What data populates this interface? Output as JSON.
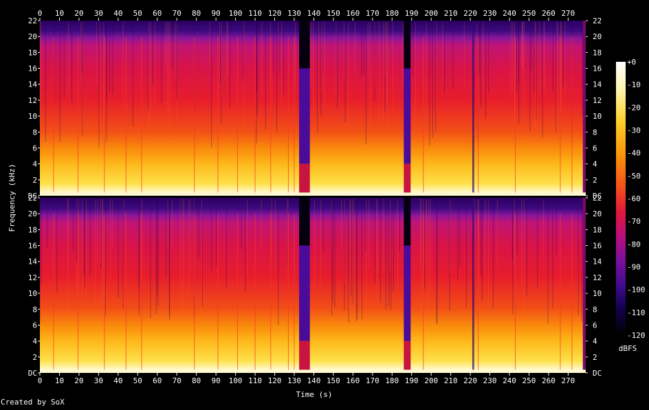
{
  "credit": "Created by SoX",
  "chart_data": {
    "type": "heatmap",
    "subtype": "spectrogram",
    "channels": 2,
    "xlabel": "Time (s)",
    "ylabel": "Frequency (kHz)",
    "colorbar_label": "dBFS",
    "xlim": [
      0,
      279
    ],
    "ylim": [
      0,
      22
    ],
    "x_ticks": [
      0,
      10,
      20,
      30,
      40,
      50,
      60,
      70,
      80,
      90,
      100,
      110,
      120,
      130,
      140,
      150,
      160,
      170,
      180,
      190,
      200,
      210,
      220,
      230,
      240,
      250,
      260,
      270
    ],
    "y_ticks": [
      {
        "v": 0,
        "label": "DC"
      },
      {
        "v": 2,
        "label": "2"
      },
      {
        "v": 4,
        "label": "4"
      },
      {
        "v": 6,
        "label": "6"
      },
      {
        "v": 8,
        "label": "8"
      },
      {
        "v": 10,
        "label": "10"
      },
      {
        "v": 12,
        "label": "12"
      },
      {
        "v": 14,
        "label": "14"
      },
      {
        "v": 16,
        "label": "16"
      },
      {
        "v": 18,
        "label": "18"
      },
      {
        "v": 20,
        "label": "20"
      },
      {
        "v": 22,
        "label": "22"
      }
    ],
    "colorbar_ticks": [
      "+0",
      "-10",
      "-20",
      "-30",
      "-40",
      "-50",
      "-60",
      "-70",
      "-80",
      "-90",
      "-100",
      "-110",
      "-120"
    ],
    "colorbar_range": [
      -120,
      0
    ],
    "palette": [
      "#000000",
      "#1a0040",
      "#4b0a8a",
      "#8a0f9e",
      "#c5127a",
      "#e8193f",
      "#f54a14",
      "#fb8a0a",
      "#fdc31c",
      "#fff07a",
      "#ffffff"
    ],
    "silent_segments": [
      {
        "start": 132.5,
        "end": 138,
        "level": "quiet"
      },
      {
        "start": 186,
        "end": 189.5,
        "level": "quiet"
      },
      {
        "start": 221,
        "end": 222,
        "level": "transition"
      },
      {
        "start": 277.5,
        "end": 279,
        "level": "end"
      }
    ],
    "spectral_profile_db": [
      {
        "khz": 0.2,
        "db": -10
      },
      {
        "khz": 1,
        "db": -25
      },
      {
        "khz": 3,
        "db": -35
      },
      {
        "khz": 5,
        "db": -42
      },
      {
        "khz": 7,
        "db": -50
      },
      {
        "khz": 10,
        "db": -55
      },
      {
        "khz": 14,
        "db": -60
      },
      {
        "khz": 16,
        "db": -65
      },
      {
        "khz": 19.5,
        "db": -75
      },
      {
        "khz": 20.5,
        "db": -95
      },
      {
        "khz": 22,
        "db": -105
      }
    ]
  }
}
